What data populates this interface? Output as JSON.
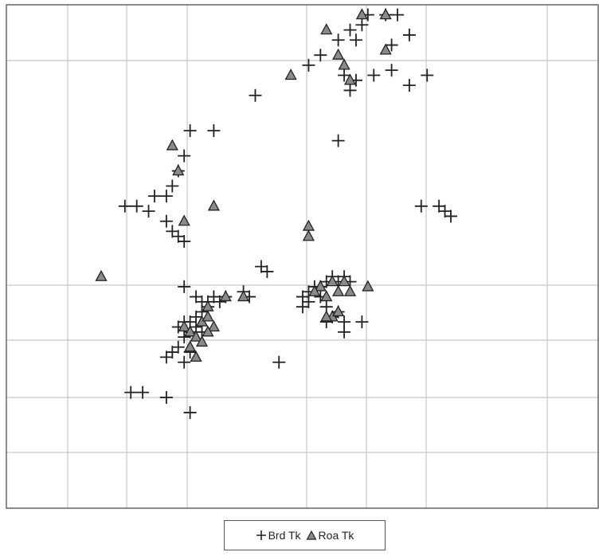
{
  "chart_data": {
    "type": "scatter",
    "title": "",
    "xlabel": "",
    "ylabel": "",
    "xlim": [
      0,
      100
    ],
    "ylim": [
      0,
      100
    ],
    "grid": true,
    "legend_position": "bottom-center",
    "colors": {
      "frame": "#666666",
      "grid": "#c8c8c8",
      "marker": "#222222",
      "triangle_fill": "#8a8a8a"
    },
    "series": [
      {
        "name": "Brd Tk",
        "marker": "plus",
        "points": [
          [
            51,
            88
          ],
          [
            53,
            90
          ],
          [
            56,
            93
          ],
          [
            58,
            95
          ],
          [
            59,
            93
          ],
          [
            60,
            96
          ],
          [
            61,
            98
          ],
          [
            64,
            98
          ],
          [
            66,
            98
          ],
          [
            68,
            94
          ],
          [
            65,
            92
          ],
          [
            71,
            86
          ],
          [
            65,
            87
          ],
          [
            62,
            86
          ],
          [
            59,
            85
          ],
          [
            57,
            86
          ],
          [
            58,
            83
          ],
          [
            68,
            84
          ],
          [
            42,
            82
          ],
          [
            56,
            73
          ],
          [
            35,
            75
          ],
          [
            31,
            75
          ],
          [
            30,
            70
          ],
          [
            29,
            67
          ],
          [
            28,
            64
          ],
          [
            27,
            62
          ],
          [
            25,
            62
          ],
          [
            24,
            59
          ],
          [
            22,
            60
          ],
          [
            20,
            60
          ],
          [
            27,
            57
          ],
          [
            28,
            55
          ],
          [
            29,
            54
          ],
          [
            30,
            53
          ],
          [
            70,
            60
          ],
          [
            73,
            60
          ],
          [
            74,
            59
          ],
          [
            75,
            58
          ],
          [
            43,
            48
          ],
          [
            44,
            47
          ],
          [
            30,
            44
          ],
          [
            32,
            42
          ],
          [
            33,
            41
          ],
          [
            34,
            41
          ],
          [
            35,
            42
          ],
          [
            36,
            41
          ],
          [
            34,
            40
          ],
          [
            33,
            39
          ],
          [
            32,
            38
          ],
          [
            31,
            37
          ],
          [
            30,
            37
          ],
          [
            29,
            36
          ],
          [
            32,
            36
          ],
          [
            33,
            35
          ],
          [
            31,
            35
          ],
          [
            30,
            34
          ],
          [
            29,
            32
          ],
          [
            28,
            31
          ],
          [
            27,
            30
          ],
          [
            30,
            29
          ],
          [
            31,
            31
          ],
          [
            37,
            42
          ],
          [
            40,
            43
          ],
          [
            41,
            42
          ],
          [
            50,
            42
          ],
          [
            51,
            43
          ],
          [
            52,
            44
          ],
          [
            53,
            44
          ],
          [
            54,
            45
          ],
          [
            55,
            46
          ],
          [
            56,
            45
          ],
          [
            57,
            46
          ],
          [
            58,
            45
          ],
          [
            53,
            42
          ],
          [
            51,
            41
          ],
          [
            50,
            40
          ],
          [
            54,
            40
          ],
          [
            56,
            39
          ],
          [
            55,
            38
          ],
          [
            54,
            37
          ],
          [
            57,
            37
          ],
          [
            60,
            37
          ],
          [
            57,
            35
          ],
          [
            46,
            29
          ],
          [
            21,
            23
          ],
          [
            23,
            23
          ],
          [
            27,
            22
          ],
          [
            31,
            19
          ]
        ]
      },
      {
        "name": "Roa Tk",
        "marker": "triangle",
        "points": [
          [
            60,
            98
          ],
          [
            64,
            98
          ],
          [
            54,
            95
          ],
          [
            56,
            90
          ],
          [
            57,
            88
          ],
          [
            58,
            85
          ],
          [
            64,
            91
          ],
          [
            48,
            86
          ],
          [
            28,
            72
          ],
          [
            29,
            67
          ],
          [
            30,
            57
          ],
          [
            35,
            60
          ],
          [
            51,
            56
          ],
          [
            51,
            54
          ],
          [
            16,
            46
          ],
          [
            53,
            44
          ],
          [
            55,
            45
          ],
          [
            57,
            45
          ],
          [
            61,
            44
          ],
          [
            52,
            43
          ],
          [
            54,
            42
          ],
          [
            56,
            43
          ],
          [
            58,
            43
          ],
          [
            55,
            38
          ],
          [
            56,
            39
          ],
          [
            54,
            38
          ],
          [
            34,
            40
          ],
          [
            37,
            42
          ],
          [
            40,
            42
          ],
          [
            30,
            36
          ],
          [
            31,
            35
          ],
          [
            32,
            34
          ],
          [
            33,
            33
          ],
          [
            31,
            32
          ],
          [
            32,
            30
          ],
          [
            33,
            37
          ],
          [
            34,
            38
          ],
          [
            35,
            36
          ],
          [
            34,
            35
          ]
        ]
      }
    ]
  }
}
